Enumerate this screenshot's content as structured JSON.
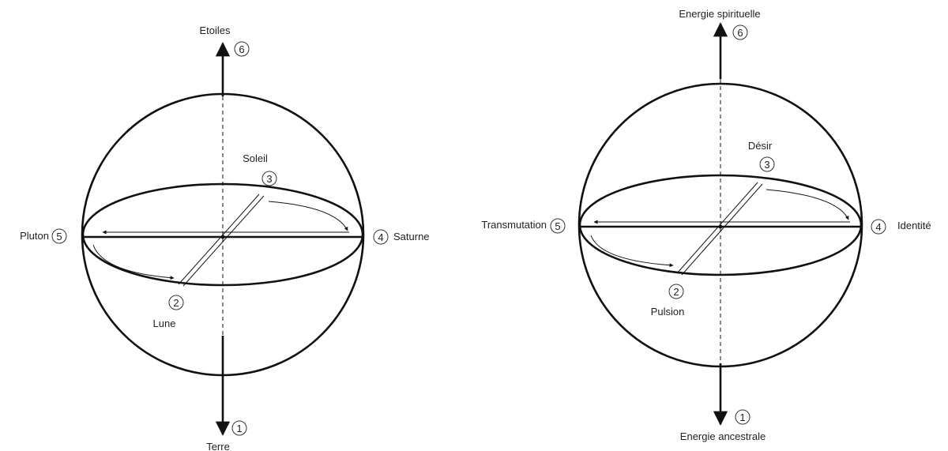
{
  "diagrams": [
    {
      "top": {
        "label": "Etoiles",
        "num": "6"
      },
      "bottom": {
        "label": "Terre",
        "num": "1"
      },
      "left": {
        "label": "Pluton",
        "num": "5"
      },
      "right": {
        "label": "Saturne",
        "num": "4"
      },
      "front": {
        "label": "Lune",
        "num": "2"
      },
      "back": {
        "label": "Soleil",
        "num": "3"
      }
    },
    {
      "top": {
        "label": "Energie spirituelle",
        "num": "6"
      },
      "bottom": {
        "label": "Energie ancestrale",
        "num": "1"
      },
      "left": {
        "label": "Transmutation",
        "num": "5"
      },
      "right": {
        "label": "Identité",
        "num": "4"
      },
      "front": {
        "label": "Pulsion",
        "num": "2"
      },
      "back": {
        "label": "Désir",
        "num": "3"
      }
    }
  ]
}
